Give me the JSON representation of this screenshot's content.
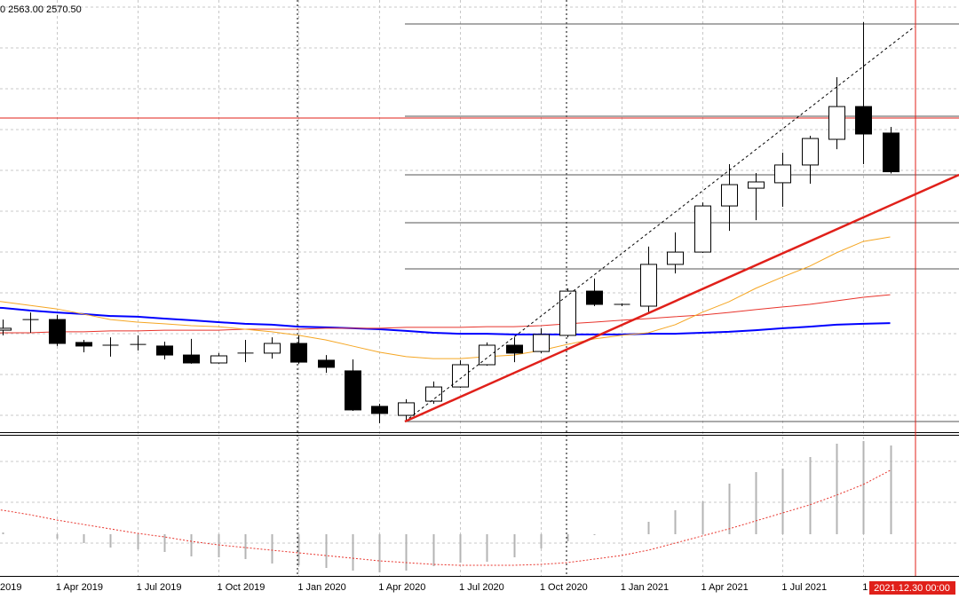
{
  "chart_data": {
    "type": "candlestick",
    "header": "0 2563.00 2570.50",
    "crosshair_label": "2021.12.30 00:00",
    "categories": [
      "2019",
      null,
      null,
      "1 Apr 2019",
      null,
      null,
      "1 Jul 2019",
      null,
      null,
      "1 Oct 2019",
      null,
      null,
      "1 Jan 2020",
      null,
      null,
      "1 Apr 2020",
      null,
      null,
      "1 Jul 2020",
      null,
      null,
      "1 Oct 2020",
      null,
      null,
      "1 Jan 2021",
      null,
      null,
      "1 Apr 2021",
      null,
      null,
      "1 Jul 2021",
      null,
      null,
      "1",
      null
    ],
    "open": [
      null,
      1901,
      1946,
      1946,
      1849,
      1837.5,
      1841,
      1834,
      1796,
      1762.5,
      1804,
      1804,
      1845,
      1774,
      1729,
      1579,
      1541,
      1601,
      1661,
      1755,
      1837.5,
      1811,
      1879,
      2066,
      2010,
      2002.5,
      2179,
      2231,
      2426,
      2501,
      2524,
      2599,
      2707.5,
      2846,
      2734
    ],
    "high": [
      null,
      1946,
      1976,
      1965,
      1860,
      1871,
      1879,
      1852.5,
      1864,
      1804,
      1860,
      1871,
      1879,
      1796,
      1777.5,
      1590,
      1609,
      1684,
      1774,
      1849,
      1871,
      1909,
      2077.5,
      2119,
      2014,
      2254,
      2314,
      2441,
      2602.5,
      2565,
      2651,
      2722.5,
      2970,
      3202.5,
      2760
    ],
    "low": [
      null,
      1879,
      1890,
      1834,
      1807.5,
      1789,
      1815,
      1777.5,
      1759,
      1759,
      1766,
      1781,
      1759,
      1721,
      1560,
      1507.5,
      1515,
      1590,
      1657.5,
      1751,
      1766,
      1804,
      1871,
      2002.5,
      2002.5,
      1976,
      2141,
      2227.5,
      2321,
      2366,
      2422.5,
      2520,
      2666,
      2602.5,
      2563
    ],
    "close": [
      null,
      1909,
      1946,
      1845,
      1834,
      1837.5,
      1841,
      1796,
      1762.5,
      1792.5,
      1804,
      1845,
      1766,
      1744,
      1564,
      1549,
      1594,
      1661,
      1755,
      1837.5,
      1804,
      1882.5,
      2066,
      2010,
      2010,
      2179,
      2231,
      2426,
      2516,
      2527.5,
      2599,
      2711,
      2846,
      2730,
      2570.5
    ],
    "up_color": "#ffffff",
    "down_color": "#000000",
    "ylim": [
      1470,
      3296.25
    ],
    "grid": true,
    "moving_averages": [
      {
        "color": "#0000ff",
        "values": [
          1999,
          1995,
          1984,
          1976,
          1969,
          1961,
          1958,
          1950,
          1943,
          1935,
          1928,
          1924,
          1916,
          1913,
          1909,
          1905,
          1898,
          1890,
          1886,
          1886,
          1883,
          1883,
          1883,
          1883,
          1883,
          1886,
          1886,
          1890,
          1894,
          1901,
          1909,
          1916,
          1924,
          1928,
          1931
        ]
      },
      {
        "color": "#e8342c",
        "values": [
          1886,
          1890,
          1890,
          1894,
          1894,
          1898,
          1898,
          1901,
          1901,
          1901,
          1905,
          1905,
          1905,
          1909,
          1909,
          1909,
          1913,
          1913,
          1913,
          1916,
          1916,
          1920,
          1928,
          1935,
          1943,
          1950,
          1958,
          1965,
          1976,
          1988,
          1999,
          2010,
          2025,
          2040,
          2051
        ]
      },
      {
        "color": "#f5a623",
        "values": [
          2033,
          2021,
          2006,
          1991,
          1969,
          1946,
          1935,
          1928,
          1920,
          1916,
          1905,
          1894,
          1879,
          1860,
          1834,
          1808,
          1789,
          1781,
          1781,
          1789,
          1796,
          1815,
          1841,
          1864,
          1879,
          1890,
          1924,
          1976,
          2021,
          2078,
          2126,
          2171,
          2228,
          2276,
          2295
        ]
      }
    ],
    "oscillator": {
      "ylim": [
        -46,
        110
      ],
      "histogram_color": "#b4b4b4",
      "signal_color": "#e8342c",
      "histogram": [
        null,
        2,
        0,
        -5,
        -10,
        -15,
        -17,
        -20,
        -25,
        -26,
        -28,
        -33,
        -35,
        -38,
        -41,
        -43,
        -41,
        -36,
        -32,
        -31,
        -26,
        -16,
        -8,
        -1,
        0,
        14,
        27,
        37,
        57,
        70,
        74,
        87,
        102,
        105,
        100
      ],
      "signal": [
        30,
        27,
        22,
        16,
        11,
        6,
        1,
        -3,
        -8,
        -12,
        -15,
        -18,
        -21,
        -24,
        -27,
        -30,
        -32,
        -34,
        -35,
        -35,
        -35,
        -34,
        -32,
        -28,
        -24,
        -18,
        -10,
        -2,
        6,
        15,
        24,
        33,
        44,
        56,
        72
      ]
    }
  }
}
